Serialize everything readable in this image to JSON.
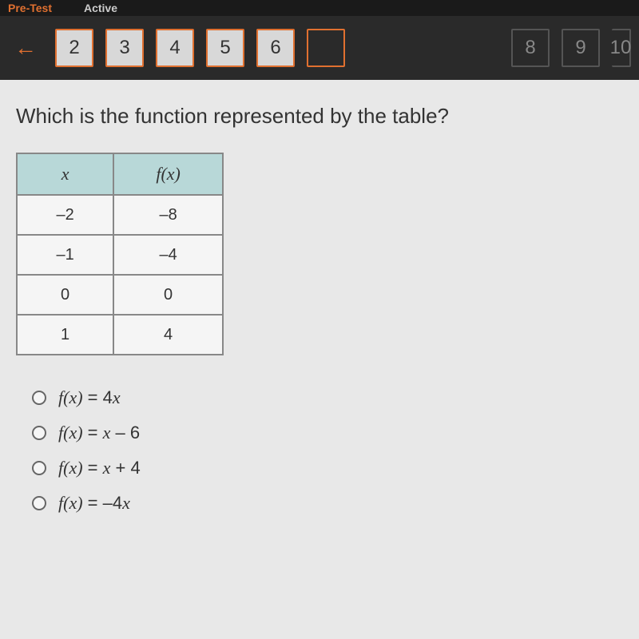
{
  "header": {
    "tab_left": "Pre-Test",
    "tab_right": "Active"
  },
  "nav": {
    "buttons": [
      "2",
      "3",
      "4",
      "5",
      "6",
      "",
      "8",
      "9",
      "10"
    ]
  },
  "question": "Which is the function represented by the table?",
  "table": {
    "headers": {
      "x": "x",
      "fx": "f(x)"
    },
    "rows": [
      {
        "x": "–2",
        "fx": "–8"
      },
      {
        "x": "–1",
        "fx": "–4"
      },
      {
        "x": "0",
        "fx": "0"
      },
      {
        "x": "1",
        "fx": "4"
      }
    ],
    "header_bg": "#b8d8d8",
    "cell_bg": "#f5f5f5",
    "border_color": "#888888"
  },
  "options": [
    {
      "fx": "f(x)",
      "eq": " = 4",
      "var": "x"
    },
    {
      "fx": "f(x)",
      "eq": " = ",
      "var": "x",
      "tail": " – 6"
    },
    {
      "fx": "f(x)",
      "eq": " = ",
      "var": "x",
      "tail": " + 4"
    },
    {
      "fx": "f(x)",
      "eq": " = –4",
      "var": "x"
    }
  ],
  "colors": {
    "accent": "#e07030",
    "nav_bg": "#2a2a2a",
    "content_bg": "#e8e8e8"
  }
}
